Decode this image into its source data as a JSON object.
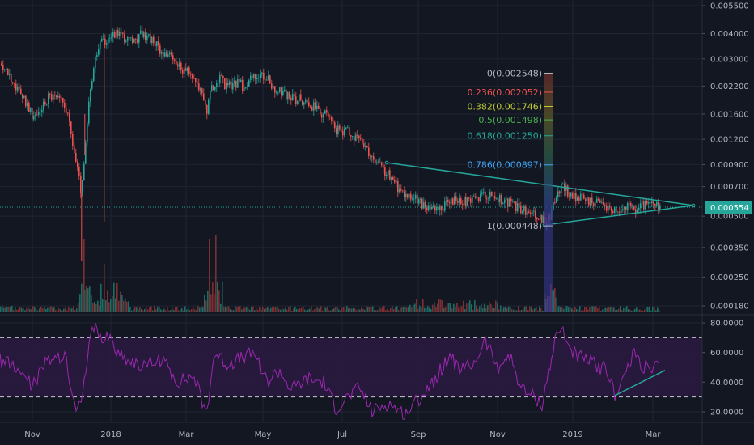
{
  "chart_data": {
    "type": "candlestick",
    "colors": {
      "background": "#131722",
      "up": "#26a69a",
      "down": "#ef5350",
      "trendline": "#26a69a",
      "current_price_line": "#26a69a",
      "rsi_line": "#9c27b0",
      "rsi_band": "#2a1a3f"
    },
    "x_ticks": [
      "Nov",
      "2018",
      "Mar",
      "May",
      "Jul",
      "Sep",
      "Nov",
      "2019",
      "Mar"
    ],
    "price_axis": {
      "scale": "log",
      "ticks": [
        "0.005500",
        "0.004000",
        "0.003000",
        "0.002200",
        "0.001600",
        "0.001200",
        "0.000900",
        "0.000700",
        "0.000500",
        "0.000350",
        "0.000250",
        "0.000180"
      ],
      "current_price": "0.000554"
    },
    "fibonacci": [
      {
        "label": "0(0.002548)",
        "color": "#b2b5be"
      },
      {
        "label": "0.236(0.002052)",
        "color": "#ef5350"
      },
      {
        "label": "0.382(0.001746)",
        "color": "#c0ca33"
      },
      {
        "label": "0.5(0.001498)",
        "color": "#4caf50"
      },
      {
        "label": "0.618(0.001250)",
        "color": "#26a69a"
      },
      {
        "label": "0.786(0.000897)",
        "color": "#42a5f5"
      },
      {
        "label": "1(0.000448)",
        "color": "#b2b5be"
      }
    ],
    "rsi": {
      "ticks": [
        "80.0000",
        "60.0000",
        "40.0000",
        "20.0000"
      ],
      "levels": [
        70,
        30
      ],
      "ylim": [
        15,
        85
      ]
    },
    "price_path": [
      [
        0,
        0.00285
      ],
      [
        10,
        0.0026
      ],
      [
        20,
        0.0021
      ],
      [
        30,
        0.0019
      ],
      [
        40,
        0.0015
      ],
      [
        50,
        0.0017
      ],
      [
        60,
        0.002
      ],
      [
        70,
        0.0019
      ],
      [
        80,
        0.0018
      ],
      [
        90,
        0.0011
      ],
      [
        100,
        0.00065
      ],
      [
        104,
        0.001
      ],
      [
        110,
        0.002
      ],
      [
        118,
        0.0031
      ],
      [
        125,
        0.0036
      ],
      [
        135,
        0.0039
      ],
      [
        145,
        0.0041
      ],
      [
        155,
        0.0038
      ],
      [
        165,
        0.0036
      ],
      [
        175,
        0.004
      ],
      [
        185,
        0.0038
      ],
      [
        195,
        0.0034
      ],
      [
        205,
        0.0032
      ],
      [
        215,
        0.0029
      ],
      [
        225,
        0.0027
      ],
      [
        235,
        0.0025
      ],
      [
        245,
        0.0022
      ],
      [
        255,
        0.0017
      ],
      [
        260,
        0.0021
      ],
      [
        270,
        0.0024
      ],
      [
        280,
        0.0022
      ],
      [
        290,
        0.0023
      ],
      [
        300,
        0.0022
      ],
      [
        310,
        0.0024
      ],
      [
        320,
        0.0025
      ],
      [
        330,
        0.0024
      ],
      [
        340,
        0.0021
      ],
      [
        350,
        0.002
      ],
      [
        360,
        0.0019
      ],
      [
        370,
        0.0019
      ],
      [
        380,
        0.0018
      ],
      [
        390,
        0.0017
      ],
      [
        400,
        0.0016
      ],
      [
        410,
        0.0014
      ],
      [
        420,
        0.0013
      ],
      [
        430,
        0.0013
      ],
      [
        440,
        0.0012
      ],
      [
        450,
        0.0011
      ],
      [
        460,
        0.00095
      ],
      [
        470,
        0.00088
      ],
      [
        480,
        0.0008
      ],
      [
        490,
        0.0007
      ],
      [
        500,
        0.00065
      ],
      [
        510,
        0.00062
      ],
      [
        520,
        0.00058
      ],
      [
        530,
        0.00055
      ],
      [
        540,
        0.00052
      ],
      [
        550,
        0.00058
      ],
      [
        560,
        0.0006
      ],
      [
        570,
        0.0006
      ],
      [
        580,
        0.00058
      ],
      [
        590,
        0.00062
      ],
      [
        600,
        0.00065
      ],
      [
        610,
        0.00062
      ],
      [
        620,
        0.0006
      ],
      [
        630,
        0.00058
      ],
      [
        640,
        0.00055
      ],
      [
        650,
        0.00052
      ],
      [
        660,
        0.0005
      ],
      [
        670,
        0.00048
      ],
      [
        675,
        0.00045
      ],
      [
        680,
        0.00052
      ],
      [
        688,
        0.00065
      ],
      [
        695,
        0.00072
      ],
      [
        705,
        0.00063
      ],
      [
        715,
        0.00062
      ],
      [
        725,
        0.0006
      ],
      [
        735,
        0.00058
      ],
      [
        745,
        0.00056
      ],
      [
        755,
        0.00055
      ],
      [
        765,
        0.00054
      ],
      [
        775,
        0.00056
      ],
      [
        785,
        0.00055
      ],
      [
        795,
        0.00057
      ],
      [
        805,
        0.00056
      ],
      [
        815,
        0.000554
      ]
    ],
    "wicks": [
      [
        100,
        0.0003
      ],
      [
        104,
        0.0016
      ],
      [
        128,
        0.00047
      ],
      [
        128,
        0.0036
      ]
    ],
    "rsi_path": [
      [
        0,
        55
      ],
      [
        20,
        50
      ],
      [
        40,
        38
      ],
      [
        60,
        56
      ],
      [
        80,
        58
      ],
      [
        95,
        18
      ],
      [
        105,
        44
      ],
      [
        115,
        80
      ],
      [
        125,
        68
      ],
      [
        135,
        72
      ],
      [
        145,
        60
      ],
      [
        160,
        55
      ],
      [
        180,
        50
      ],
      [
        200,
        56
      ],
      [
        220,
        40
      ],
      [
        240,
        44
      ],
      [
        255,
        18
      ],
      [
        265,
        60
      ],
      [
        280,
        52
      ],
      [
        300,
        56
      ],
      [
        315,
        60
      ],
      [
        330,
        40
      ],
      [
        345,
        48
      ],
      [
        360,
        35
      ],
      [
        380,
        42
      ],
      [
        400,
        40
      ],
      [
        415,
        22
      ],
      [
        430,
        30
      ],
      [
        445,
        36
      ],
      [
        460,
        20
      ],
      [
        480,
        26
      ],
      [
        500,
        18
      ],
      [
        520,
        30
      ],
      [
        540,
        44
      ],
      [
        555,
        58
      ],
      [
        570,
        48
      ],
      [
        585,
        52
      ],
      [
        600,
        68
      ],
      [
        615,
        50
      ],
      [
        630,
        58
      ],
      [
        645,
        35
      ],
      [
        660,
        30
      ],
      [
        670,
        25
      ],
      [
        680,
        52
      ],
      [
        688,
        72
      ],
      [
        695,
        76
      ],
      [
        705,
        62
      ],
      [
        720,
        56
      ],
      [
        735,
        52
      ],
      [
        750,
        48
      ],
      [
        760,
        32
      ],
      [
        770,
        42
      ],
      [
        785,
        60
      ],
      [
        795,
        50
      ],
      [
        805,
        48
      ],
      [
        815,
        52
      ]
    ]
  }
}
